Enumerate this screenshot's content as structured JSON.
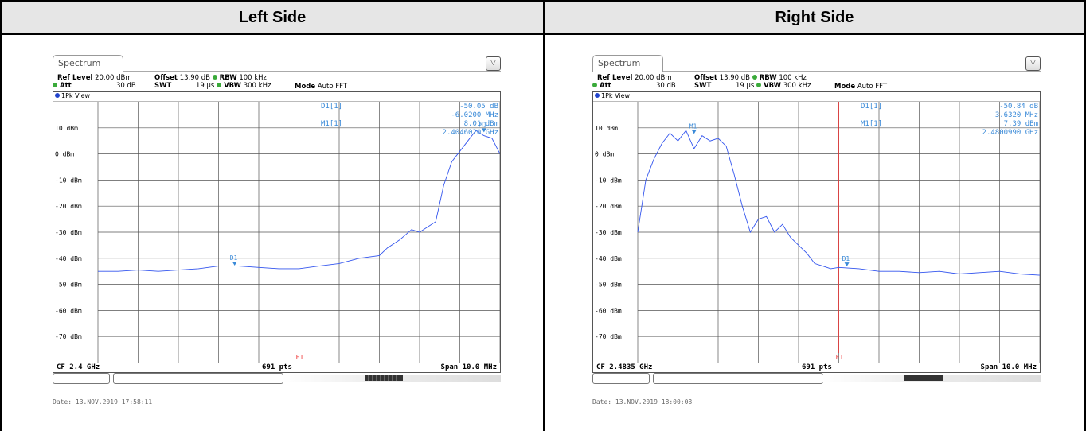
{
  "headers": {
    "left": "Left Side",
    "right": "Right Side"
  },
  "panels": [
    {
      "tab_label": "Spectrum",
      "params": {
        "ref_level_label": "Ref Level",
        "ref_level_value": "20.00 dBm",
        "offset_label": "Offset",
        "offset_value": "13.90 dB",
        "rbw_label": "RBW",
        "rbw_value": "100 kHz",
        "att_label": "Att",
        "att_value": "30 dB",
        "swt_label": "SWT",
        "swt_value": "19 µs",
        "vbw_label": "VBW",
        "vbw_value": "300 kHz",
        "mode_label": "Mode",
        "mode_value": "Auto FFT"
      },
      "view_label": "1Pk View",
      "marker_table": [
        {
          "name": "D1[1]",
          "values": [
            "-50.05 dB",
            "-6.0200 MHz"
          ]
        },
        {
          "name": "M1[1]",
          "values": [
            "8.01 dBm",
            "2.4046020 GHz"
          ]
        }
      ],
      "footer": {
        "cf": "CF 2.4 GHz",
        "pts": "691 pts",
        "span": "Span 10.0 MHz"
      },
      "date": "Date: 13.NOV.2019  17:58:11"
    },
    {
      "tab_label": "Spectrum",
      "params": {
        "ref_level_label": "Ref Level",
        "ref_level_value": "20.00 dBm",
        "offset_label": "Offset",
        "offset_value": "13.90 dB",
        "rbw_label": "RBW",
        "rbw_value": "100 kHz",
        "att_label": "Att",
        "att_value": "30 dB",
        "swt_label": "SWT",
        "swt_value": "19 µs",
        "vbw_label": "VBW",
        "vbw_value": "300 kHz",
        "mode_label": "Mode",
        "mode_value": "Auto FFT"
      },
      "view_label": "1Pk View",
      "marker_table": [
        {
          "name": "D1[1]",
          "values": [
            "-50.84 dB",
            "3.6320 MHz"
          ]
        },
        {
          "name": "M1[1]",
          "values": [
            "7.39 dBm",
            "2.4800990 GHz"
          ]
        }
      ],
      "footer": {
        "cf": "CF 2.4835 GHz",
        "pts": "691 pts",
        "span": "Span 10.0 MHz"
      },
      "date": "Date: 13.NOV.2019  18:00:08"
    }
  ],
  "chart_data": [
    {
      "type": "line",
      "title": "",
      "x_unit": "MHz (offset from CF 2.4 GHz)",
      "xlim": [
        -5,
        5
      ],
      "ylim": [
        -80,
        20
      ],
      "yticks": [
        10,
        0,
        -10,
        -20,
        -30,
        -40,
        -50,
        -60,
        -70
      ],
      "ytick_labels": [
        "10 dBm",
        "0 dBm",
        "-10 dBm",
        "-20 dBm",
        "-30 dBm",
        "-40 dBm",
        "-50 dBm",
        "-60 dBm",
        "-70 dBm"
      ],
      "grid": true,
      "series": [
        {
          "color": "#3355ee",
          "x": [
            -5,
            -4.5,
            -4,
            -3.5,
            -3,
            -2.5,
            -2,
            -1.5,
            -1,
            -0.5,
            0,
            0.5,
            1,
            1.5,
            2,
            2.2,
            2.5,
            2.8,
            3,
            3.2,
            3.4,
            3.6,
            3.8,
            4,
            4.2,
            4.4,
            4.6,
            4.8,
            5
          ],
          "y": [
            -45,
            -45,
            -44.5,
            -45,
            -44.5,
            -44,
            -43,
            -43,
            -43.5,
            -44,
            -44,
            -43,
            -42,
            -40,
            -39,
            -36,
            -33,
            -29,
            -30,
            -28,
            -26,
            -12,
            -3,
            1,
            5,
            9,
            7,
            6,
            0
          ]
        }
      ],
      "markers": [
        {
          "label": "D1",
          "x": -1.6,
          "y": -43.1
        },
        {
          "label": "M1",
          "x": 4.6,
          "y": 8.01
        }
      ],
      "vline": {
        "label": "F1",
        "x": 0
      }
    },
    {
      "type": "line",
      "title": "",
      "x_unit": "MHz (offset from CF 2.4835 GHz)",
      "xlim": [
        -5,
        5
      ],
      "ylim": [
        -80,
        20
      ],
      "yticks": [
        10,
        0,
        -10,
        -20,
        -30,
        -40,
        -50,
        -60,
        -70
      ],
      "ytick_labels": [
        "10 dBm",
        "0 dBm",
        "-10 dBm",
        "-20 dBm",
        "-30 dBm",
        "-40 dBm",
        "-50 dBm",
        "-60 dBm",
        "-70 dBm"
      ],
      "grid": true,
      "series": [
        {
          "color": "#3355ee",
          "x": [
            -5,
            -4.8,
            -4.6,
            -4.4,
            -4.2,
            -4,
            -3.8,
            -3.6,
            -3.4,
            -3.2,
            -3,
            -2.8,
            -2.6,
            -2.4,
            -2.2,
            -2,
            -1.8,
            -1.6,
            -1.4,
            -1.2,
            -1,
            -0.8,
            -0.6,
            -0.4,
            -0.2,
            0,
            0.5,
            1,
            1.5,
            2,
            2.5,
            3,
            3.5,
            4,
            4.5,
            5
          ],
          "y": [
            -30,
            -10,
            -2,
            4,
            8,
            5,
            9,
            2,
            7,
            5,
            6,
            3,
            -8,
            -20,
            -30,
            -25,
            -24,
            -30,
            -27,
            -32,
            -35,
            -38,
            -42,
            -43,
            -44,
            -43.5,
            -44,
            -45,
            -45,
            -45.5,
            -45,
            -46,
            -45.5,
            -45,
            -46,
            -46.5
          ]
        }
      ],
      "markers": [
        {
          "label": "M1",
          "x": -3.6,
          "y": 7.39
        },
        {
          "label": "D1",
          "x": 0.2,
          "y": -43.45
        }
      ],
      "vline": {
        "label": "F1",
        "x": 0
      }
    }
  ]
}
